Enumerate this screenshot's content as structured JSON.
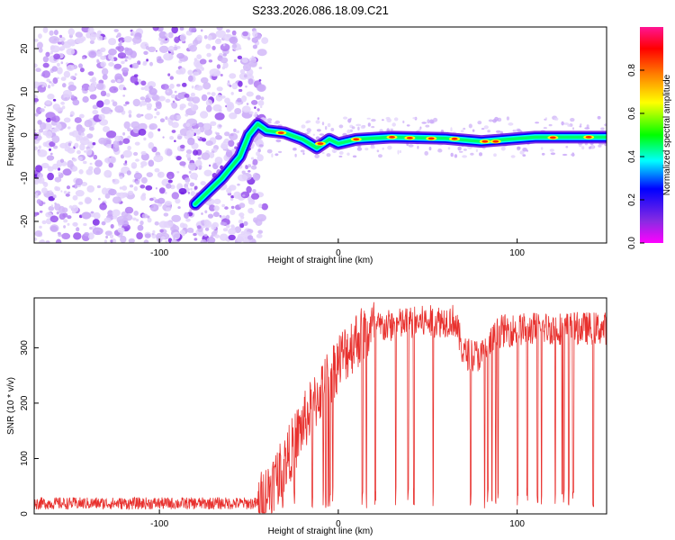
{
  "title": "S233.2026.086.18.09.C21",
  "chart_data": [
    {
      "type": "heatmap",
      "xlabel": "Height of straight line (km)",
      "ylabel": "Frequency (Hz)",
      "xlim": [
        -170,
        150
      ],
      "ylim": [
        -25,
        25
      ],
      "xticks": [
        -100,
        0,
        100
      ],
      "yticks": [
        -20,
        -10,
        0,
        10,
        20
      ],
      "colorbar": {
        "label": "Normalized spectral amplitude",
        "range": [
          0,
          1
        ],
        "ticks": [
          "0.0",
          "0.2",
          "0.4",
          "0.6",
          "0.8"
        ],
        "colors": [
          "#ff00ff",
          "#8a2be2",
          "#0000ff",
          "#00ffff",
          "#00ff00",
          "#ffff00",
          "#ff7f00",
          "#ff0000",
          "#ff1493"
        ]
      },
      "noise_region_x": [
        -170,
        -43
      ],
      "ridge": [
        {
          "x": -80,
          "f": -16
        },
        {
          "x": -65,
          "f": -10
        },
        {
          "x": -55,
          "f": -5
        },
        {
          "x": -50,
          "f": 0
        },
        {
          "x": -45,
          "f": 2.5
        },
        {
          "x": -40,
          "f": 1
        },
        {
          "x": -30,
          "f": 0.5
        },
        {
          "x": -20,
          "f": -1
        },
        {
          "x": -12,
          "f": -3
        },
        {
          "x": -5,
          "f": -1
        },
        {
          "x": 0,
          "f": -2
        },
        {
          "x": 10,
          "f": -1
        },
        {
          "x": 30,
          "f": -0.5
        },
        {
          "x": 60,
          "f": -0.8
        },
        {
          "x": 80,
          "f": -1.5
        },
        {
          "x": 95,
          "f": -1
        },
        {
          "x": 110,
          "f": -0.5
        },
        {
          "x": 150,
          "f": -0.5
        }
      ]
    },
    {
      "type": "line",
      "xlabel": "Height of straight line (km)",
      "ylabel": "SNR (10 * v/v)",
      "xlim": [
        -170,
        150
      ],
      "ylim": [
        0,
        390
      ],
      "xticks": [
        -100,
        0,
        100
      ],
      "yticks": [
        0,
        100,
        200,
        300
      ],
      "series_color": "#e8312e",
      "envelope": [
        {
          "x": -170,
          "snr": 15
        },
        {
          "x": -45,
          "snr": 15
        },
        {
          "x": -30,
          "snr": 90
        },
        {
          "x": -20,
          "snr": 160
        },
        {
          "x": -10,
          "snr": 220
        },
        {
          "x": 0,
          "snr": 275
        },
        {
          "x": 10,
          "snr": 315
        },
        {
          "x": 20,
          "snr": 335
        },
        {
          "x": 40,
          "snr": 345
        },
        {
          "x": 65,
          "snr": 350
        },
        {
          "x": 70,
          "snr": 290
        },
        {
          "x": 80,
          "snr": 285
        },
        {
          "x": 90,
          "snr": 330
        },
        {
          "x": 110,
          "snr": 335
        },
        {
          "x": 150,
          "snr": 335
        }
      ]
    }
  ]
}
